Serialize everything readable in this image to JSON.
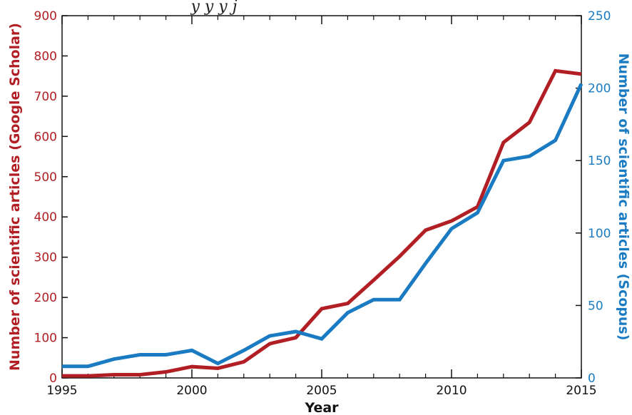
{
  "chart_data": {
    "type": "line",
    "title": "",
    "top_caption_fragment": "y                     y       y  j",
    "xlabel": "Year",
    "x": [
      1995,
      1996,
      1997,
      1998,
      1999,
      2000,
      2001,
      2002,
      2003,
      2004,
      2005,
      2006,
      2007,
      2008,
      2009,
      2010,
      2011,
      2012,
      2013,
      2014,
      2015
    ],
    "xlim": [
      1995,
      2015
    ],
    "x_ticks": [
      1995,
      2000,
      2005,
      2010,
      2015
    ],
    "x_tick_labels": [
      "1995",
      "2000",
      "2005",
      "2010",
      "2015"
    ],
    "y_left": {
      "label": "Number of scientific articles (Google Scholar)",
      "lim": [
        0,
        900
      ],
      "ticks": [
        0,
        100,
        200,
        300,
        400,
        500,
        600,
        700,
        800,
        900
      ],
      "tick_labels": [
        "0",
        "100",
        "200",
        "300",
        "400",
        "500",
        "600",
        "700",
        "800",
        "900"
      ],
      "color": "#b11f24"
    },
    "y_right": {
      "label": "Number of scientific articles (Scopus)",
      "lim": [
        0,
        250
      ],
      "ticks": [
        0,
        50,
        100,
        150,
        200,
        250
      ],
      "tick_labels": [
        "0",
        "50",
        "100",
        "150",
        "200",
        "250"
      ],
      "color": "#1b7bc2"
    },
    "series": [
      {
        "name": "Google Scholar",
        "axis": "left",
        "color": "#b11f24",
        "values": [
          5,
          5,
          8,
          8,
          15,
          28,
          24,
          40,
          85,
          100,
          172,
          185,
          243,
          302,
          367,
          390,
          425,
          585,
          635,
          763,
          755
        ]
      },
      {
        "name": "Scopus",
        "axis": "right",
        "color": "#1b7bc2",
        "values": [
          8,
          8,
          13,
          16,
          16,
          19,
          10,
          19,
          29,
          32,
          27,
          45,
          54,
          54,
          79,
          103,
          114,
          150,
          153,
          164,
          203
        ]
      }
    ],
    "grid": false,
    "legend": "none"
  }
}
